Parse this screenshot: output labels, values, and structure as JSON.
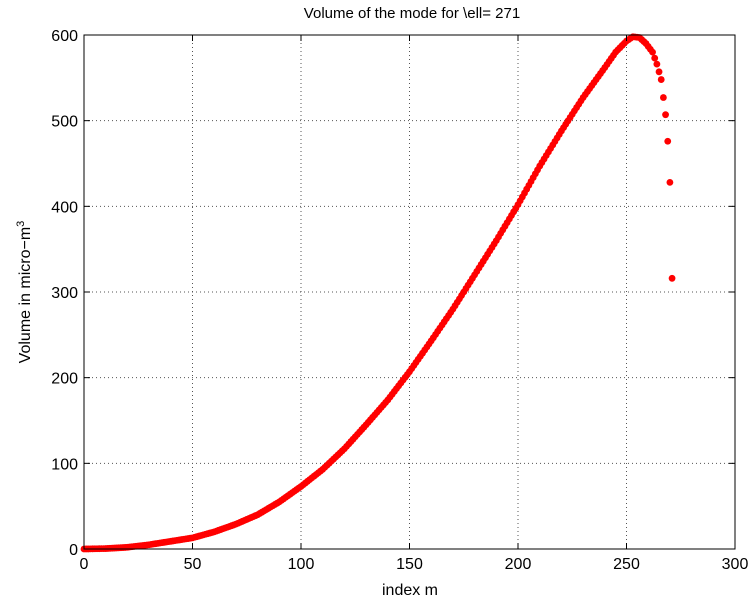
{
  "chart_data": {
    "type": "scatter",
    "title": "Volume of the mode for \\ell= 271",
    "xlabel": "index m",
    "ylabel": "Volume in micro−m",
    "ylabel_superscript": "3",
    "xlim": [
      0,
      300
    ],
    "ylim": [
      0,
      600
    ],
    "xticks": [
      0,
      50,
      100,
      150,
      200,
      250,
      300
    ],
    "yticks": [
      0,
      100,
      200,
      300,
      400,
      500,
      600
    ],
    "xtick_labels": [
      "0",
      "50",
      "100",
      "150",
      "200",
      "250",
      "300"
    ],
    "ytick_labels": [
      "0",
      "100",
      "200",
      "300",
      "400",
      "500",
      "600"
    ],
    "grid": true,
    "marker_color": "#ff0000",
    "series": [
      {
        "x_range": [
          0,
          271
        ],
        "profile": [
          [
            0,
            0
          ],
          [
            10,
            0.5
          ],
          [
            20,
            2
          ],
          [
            30,
            5
          ],
          [
            40,
            9
          ],
          [
            50,
            13
          ],
          [
            60,
            20
          ],
          [
            70,
            29
          ],
          [
            80,
            40
          ],
          [
            90,
            55
          ],
          [
            100,
            73
          ],
          [
            110,
            93
          ],
          [
            120,
            117
          ],
          [
            130,
            145
          ],
          [
            140,
            174
          ],
          [
            150,
            207
          ],
          [
            160,
            243
          ],
          [
            170,
            280
          ],
          [
            180,
            320
          ],
          [
            190,
            360
          ],
          [
            200,
            402
          ],
          [
            210,
            447
          ],
          [
            220,
            488
          ],
          [
            230,
            527
          ],
          [
            240,
            562
          ],
          [
            245,
            580
          ],
          [
            250,
            593
          ],
          [
            253,
            598
          ],
          [
            256,
            597
          ],
          [
            259,
            590
          ],
          [
            262,
            580
          ],
          [
            264,
            566
          ],
          [
            266,
            548
          ],
          [
            267,
            527
          ],
          [
            268,
            507
          ],
          [
            269,
            476
          ],
          [
            270,
            428
          ],
          [
            271,
            316
          ]
        ]
      }
    ]
  }
}
